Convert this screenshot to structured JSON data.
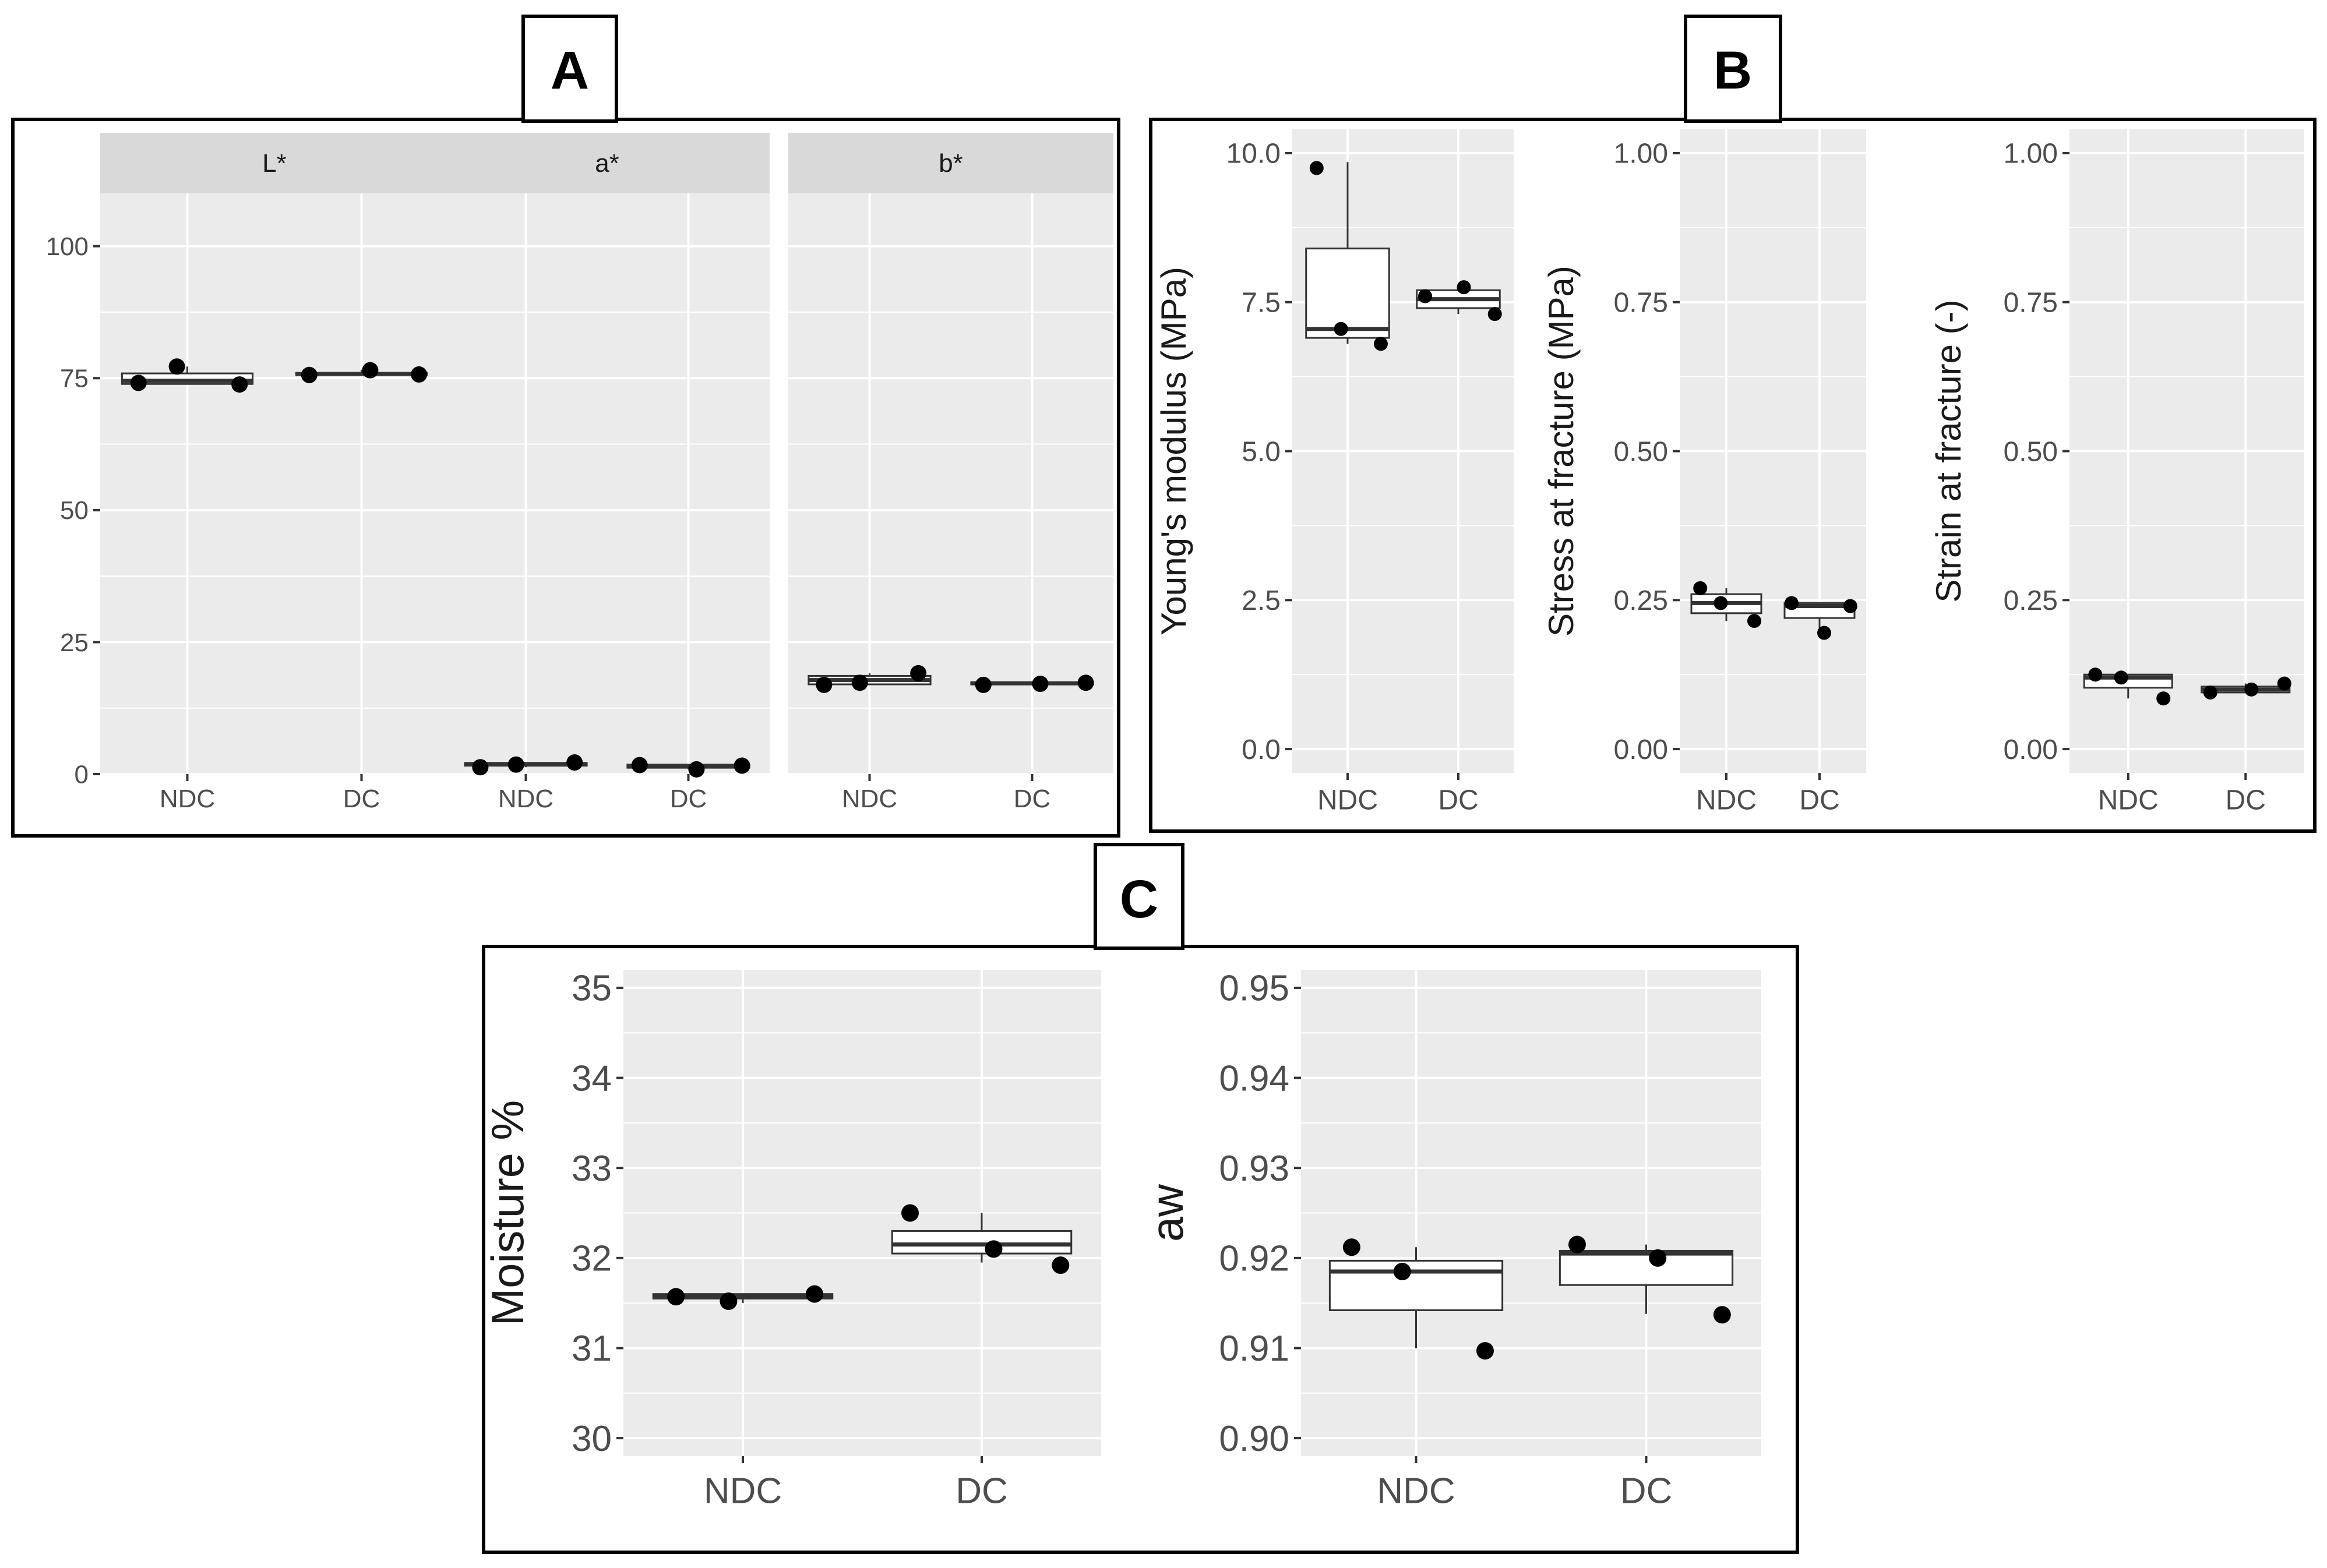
{
  "figure": {
    "panel_labels": [
      "A",
      "B",
      "C"
    ]
  },
  "colors": {
    "panel_bg": "#ebebeb",
    "strip_bg": "#d9d9d9",
    "grid": "#ffffff",
    "point": "#000000",
    "frame": "#000000",
    "tick_text": "#4d4d4d"
  },
  "chart_data": [
    {
      "id": "A-L",
      "panel": "A",
      "type": "box",
      "strip": "L*",
      "categories": [
        "NDC",
        "DC"
      ],
      "ylim": [
        0,
        110
      ],
      "yticks": [
        0,
        25,
        50,
        75,
        100
      ],
      "boxes": [
        {
          "min": 73.8,
          "q1": 73.9,
          "median": 74.5,
          "q3": 75.9,
          "max": 77.2
        },
        {
          "min": 75.4,
          "q1": 75.6,
          "median": 75.8,
          "q3": 76.0,
          "max": 76.6
        }
      ],
      "points": [
        [
          74.1,
          77.2,
          73.8
        ],
        [
          75.6,
          76.5,
          75.7
        ]
      ],
      "ylabel": ""
    },
    {
      "id": "A-a",
      "panel": "A",
      "type": "box",
      "strip": "a*",
      "categories": [
        "NDC",
        "DC"
      ],
      "ylim": [
        0,
        110
      ],
      "yticks": [
        0,
        25,
        50,
        75,
        100
      ],
      "boxes": [
        {
          "min": 1.3,
          "q1": 1.6,
          "median": 1.9,
          "q3": 2.1,
          "max": 2.2
        },
        {
          "min": 0.9,
          "q1": 1.2,
          "median": 1.5,
          "q3": 1.8,
          "max": 1.9
        }
      ],
      "points": [
        [
          1.3,
          1.8,
          2.2
        ],
        [
          1.7,
          0.9,
          1.6
        ]
      ],
      "ylabel": ""
    },
    {
      "id": "A-b",
      "panel": "A",
      "type": "box",
      "strip": "b*",
      "categories": [
        "NDC",
        "DC"
      ],
      "ylim": [
        0,
        110
      ],
      "yticks": [
        0,
        25,
        50,
        75,
        100
      ],
      "boxes": [
        {
          "min": 16.9,
          "q1": 17.0,
          "median": 17.8,
          "q3": 18.6,
          "max": 19.1
        },
        {
          "min": 16.9,
          "q1": 17.0,
          "median": 17.2,
          "q3": 17.4,
          "max": 17.5
        }
      ],
      "points": [
        [
          16.9,
          17.3,
          19.1
        ],
        [
          16.9,
          17.1,
          17.3
        ]
      ],
      "ylabel": ""
    },
    {
      "id": "B-young",
      "panel": "B",
      "type": "box",
      "categories": [
        "NDC",
        "DC"
      ],
      "ylim": [
        -0.4,
        10.4
      ],
      "yticks": [
        0.0,
        2.5,
        5.0,
        7.5,
        10.0
      ],
      "tick_labels": [
        "0.0",
        "2.5",
        "5.0",
        "7.5",
        "10.0"
      ],
      "boxes": [
        {
          "min": 6.8,
          "q1": 6.9,
          "median": 7.05,
          "q3": 8.4,
          "max": 9.85
        },
        {
          "min": 7.3,
          "q1": 7.4,
          "median": 7.55,
          "q3": 7.7,
          "max": 7.75
        }
      ],
      "points": [
        [
          9.75,
          7.05,
          6.8
        ],
        [
          7.6,
          7.75,
          7.3
        ]
      ],
      "ylabel": "Young's modulus (MPa)"
    },
    {
      "id": "B-stress",
      "panel": "B",
      "type": "box",
      "categories": [
        "NDC",
        "DC"
      ],
      "ylim": [
        -0.04,
        1.04
      ],
      "yticks": [
        0.0,
        0.25,
        0.5,
        0.75,
        1.0
      ],
      "tick_labels": [
        "0.00",
        "0.25",
        "0.50",
        "0.75",
        "1.00"
      ],
      "boxes": [
        {
          "min": 0.215,
          "q1": 0.228,
          "median": 0.245,
          "q3": 0.26,
          "max": 0.27
        },
        {
          "min": 0.195,
          "q1": 0.22,
          "median": 0.24,
          "q3": 0.245,
          "max": 0.245
        }
      ],
      "points": [
        [
          0.27,
          0.245,
          0.215
        ],
        [
          0.245,
          0.195,
          0.24
        ]
      ],
      "ylabel": "Stress at fracture (MPa)"
    },
    {
      "id": "B-strain",
      "panel": "B",
      "type": "box",
      "categories": [
        "NDC",
        "DC"
      ],
      "ylim": [
        -0.04,
        1.04
      ],
      "yticks": [
        0.0,
        0.25,
        0.5,
        0.75,
        1.0
      ],
      "tick_labels": [
        "0.00",
        "0.25",
        "0.50",
        "0.75",
        "1.00"
      ],
      "boxes": [
        {
          "min": 0.085,
          "q1": 0.103,
          "median": 0.12,
          "q3": 0.125,
          "max": 0.125
        },
        {
          "min": 0.095,
          "q1": 0.095,
          "median": 0.1,
          "q3": 0.105,
          "max": 0.11
        }
      ],
      "points": [
        [
          0.125,
          0.12,
          0.085
        ],
        [
          0.095,
          0.1,
          0.11
        ]
      ],
      "ylabel": "Strain at fracture (-)"
    },
    {
      "id": "C-moisture",
      "panel": "C",
      "type": "box",
      "categories": [
        "NDC",
        "DC"
      ],
      "ylim": [
        29.8,
        35.2
      ],
      "yticks": [
        30,
        31,
        32,
        33,
        34,
        35
      ],
      "tick_labels": [
        "30",
        "31",
        "32",
        "33",
        "34",
        "35"
      ],
      "boxes": [
        {
          "min": 31.5,
          "q1": 31.55,
          "median": 31.58,
          "q3": 31.6,
          "max": 31.6
        },
        {
          "min": 31.95,
          "q1": 32.05,
          "median": 32.15,
          "q3": 32.3,
          "max": 32.5
        }
      ],
      "points": [
        [
          31.57,
          31.52,
          31.6
        ],
        [
          32.5,
          32.1,
          31.92
        ]
      ],
      "ylabel": "Moisture %"
    },
    {
      "id": "C-aw",
      "panel": "C",
      "type": "box",
      "categories": [
        "NDC",
        "DC"
      ],
      "ylim": [
        0.898,
        0.952
      ],
      "yticks": [
        0.9,
        0.91,
        0.92,
        0.93,
        0.94,
        0.95
      ],
      "tick_labels": [
        "0.90",
        "0.91",
        "0.92",
        "0.93",
        "0.94",
        "0.95"
      ],
      "boxes": [
        {
          "min": 0.91,
          "q1": 0.9142,
          "median": 0.9185,
          "q3": 0.9197,
          "max": 0.9212
        },
        {
          "min": 0.9138,
          "q1": 0.917,
          "median": 0.9205,
          "q3": 0.9208,
          "max": 0.9215
        }
      ],
      "points": [
        [
          0.9212,
          0.9185,
          0.9097
        ],
        [
          0.9215,
          0.92,
          0.9137
        ]
      ],
      "ylabel": "aw"
    }
  ]
}
